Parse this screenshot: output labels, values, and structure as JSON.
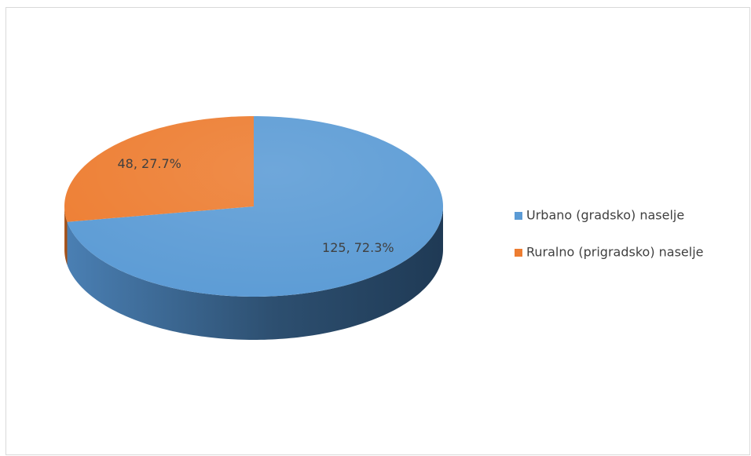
{
  "chart_data": {
    "type": "pie",
    "categories": [
      "Urbano (gradsko) naselje",
      "Ruralno (prigradsko) naselje"
    ],
    "values": [
      125,
      48
    ],
    "value_labels": [
      "125, 72.3%",
      "48, 27.7%"
    ],
    "colors": [
      "#5b9bd5",
      "#ed7d31"
    ],
    "legend": "right"
  }
}
